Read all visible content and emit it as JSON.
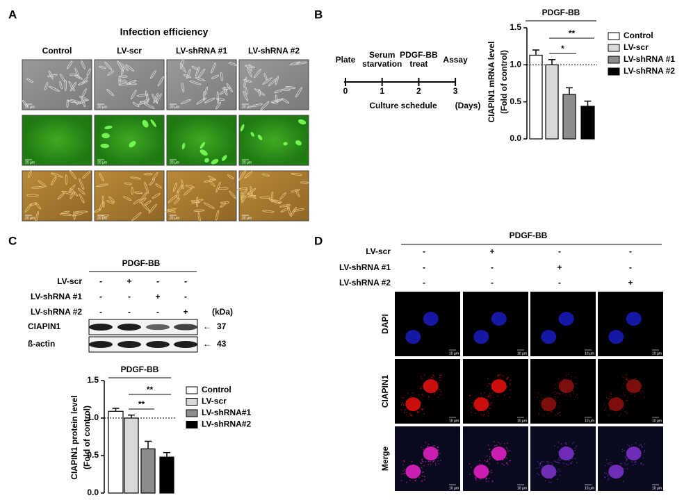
{
  "panel_labels": [
    "A",
    "B",
    "C",
    "D"
  ],
  "panel_a": {
    "title": "Infection efficiency",
    "columns": [
      "Control",
      "LV-scr",
      "LV-shRNA #1",
      "LV-shRNA #2"
    ],
    "scale_bar": "20 µm"
  },
  "panel_b_schedule": {
    "steps": [
      {
        "label": [
          "Plate"
        ],
        "day": 0
      },
      {
        "label": [
          "Serum",
          "starvation"
        ],
        "day": 1
      },
      {
        "label": [
          "PDGF-BB",
          "treat"
        ],
        "day": 2
      },
      {
        "label": [
          "Assay"
        ],
        "day": 3
      }
    ],
    "xlabel": "Culture schedule",
    "unit": "(Days)"
  },
  "panel_c_blot": {
    "treatment": "PDGF-BB",
    "rows": [
      {
        "name": "LV-scr",
        "signs": [
          "-",
          "+",
          "-",
          "-"
        ]
      },
      {
        "name": "LV-shRNA  #1",
        "signs": [
          "-",
          "-",
          "+",
          "-"
        ]
      },
      {
        "name": "LV-shRNA  #2",
        "signs": [
          "-",
          "-",
          "-",
          "+"
        ]
      }
    ],
    "kda_header": "(kDa)",
    "bands": [
      {
        "name": "CIAPIN1",
        "arrow": "←",
        "kda": 37
      },
      {
        "name": "ß-actin",
        "arrow": "←",
        "kda": 43
      }
    ]
  },
  "panel_d": {
    "treatment": "PDGF-BB",
    "rows": [
      {
        "name": "LV-scr",
        "signs": [
          "-",
          "+",
          "-",
          "-"
        ]
      },
      {
        "name": "LV-shRNA  #1",
        "signs": [
          "-",
          "-",
          "+",
          "-"
        ]
      },
      {
        "name": "LV-shRNA  #2",
        "signs": [
          "-",
          "-",
          "-",
          "+"
        ]
      }
    ],
    "channels": [
      "DAPI",
      "CIAPIN1",
      "Merge"
    ],
    "scale_bar": "10 µm"
  },
  "chart_data": [
    {
      "type": "bar",
      "treatment": "PDGF-BB",
      "ylabel": [
        "CIAPIN1 mRNA level",
        "(Fold of control)"
      ],
      "categories": [
        "Control",
        "LV-scr",
        "LV-shRNA #1",
        "LV-shRNA #2"
      ],
      "values": [
        1.13,
        1.0,
        0.6,
        0.44
      ],
      "errors": [
        0.07,
        0.07,
        0.09,
        0.07
      ],
      "colors": [
        "#ffffff",
        "#d9d9d9",
        "#8c8c8c",
        "#000000"
      ],
      "ylim": [
        0,
        1.5
      ],
      "yticks": [
        {
          "value": 0,
          "label": "0.0"
        },
        {
          "value": 0.5,
          "label": "0.5"
        },
        {
          "value": 1,
          "label": "1.0"
        },
        {
          "value": 1.5,
          "label": "1.5"
        }
      ],
      "reference_line": 1,
      "significance": [
        "*",
        "**"
      ]
    },
    {
      "type": "bar",
      "treatment": "PDGF-BB",
      "ylabel": [
        "CIAPIN1 protein level",
        "(Fold of control)"
      ],
      "categories": [
        "Control",
        "LV-scr",
        "LV-shRNA#1",
        "LV-shRNA#2"
      ],
      "values": [
        1.09,
        1.0,
        0.59,
        0.48
      ],
      "errors": [
        0.04,
        0.04,
        0.1,
        0.06
      ],
      "colors": [
        "#ffffff",
        "#d9d9d9",
        "#8c8c8c",
        "#000000"
      ],
      "ylim": [
        0,
        1.5
      ],
      "yticks": [
        {
          "value": 0,
          "label": "0.0"
        },
        {
          "value": 0.5,
          "label": "0.5"
        },
        {
          "value": 1,
          "label": "1.0"
        },
        {
          "value": 1.5,
          "label": "1.5"
        }
      ],
      "reference_line": 1,
      "significance": [
        "**",
        "**"
      ]
    }
  ]
}
